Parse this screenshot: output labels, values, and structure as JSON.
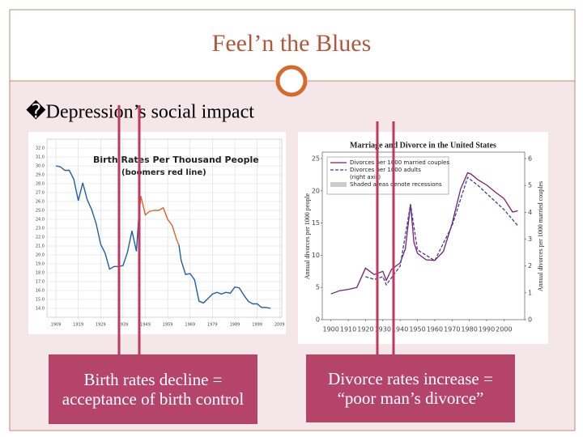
{
  "slide": {
    "title": "Feel’n the Blues",
    "bullet": "�Depression’s social impact",
    "captions": [
      "Birth rates decline = acceptance of birth control",
      "Divorce rates increase = “poor man’s divorce”"
    ]
  },
  "chart_data": [
    {
      "type": "line",
      "title": "Birth Rates Per Thousand People",
      "subtitle": "(boomers red line)",
      "grid": true,
      "xlim": [
        1905,
        2010
      ],
      "xticks": [
        1909,
        1919,
        1929,
        1939,
        1949,
        1959,
        1969,
        1979,
        1989,
        1999,
        2009
      ],
      "ylim": [
        13,
        33
      ],
      "yticks": [
        {
          "value": 14,
          "label": "14.0"
        },
        {
          "value": 15,
          "label": "15.0"
        },
        {
          "value": 16,
          "label": "16.0"
        },
        {
          "value": 17,
          "label": "17.0"
        },
        {
          "value": 18,
          "label": "18.0"
        },
        {
          "value": 19,
          "label": "19.0"
        },
        {
          "value": 20,
          "label": "20.0"
        },
        {
          "value": 21,
          "label": "21.0"
        },
        {
          "value": 22,
          "label": "22.0"
        },
        {
          "value": 23,
          "label": "23.0"
        },
        {
          "value": 24,
          "label": "24.0"
        },
        {
          "value": 25,
          "label": "25.0"
        },
        {
          "value": 26,
          "label": "26.0"
        },
        {
          "value": 27,
          "label": "27.0"
        },
        {
          "value": 28,
          "label": "28.0"
        },
        {
          "value": 29,
          "label": "29.0"
        },
        {
          "value": 30,
          "label": "30.0"
        },
        {
          "value": 31,
          "label": "31.0"
        },
        {
          "value": 32,
          "label": "32.0"
        }
      ],
      "series": [
        {
          "color": "#1f5fa8",
          "x": [
            1909,
            1911,
            1913,
            1915,
            1917,
            1919,
            1921,
            1923,
            1925,
            1927,
            1929,
            1931,
            1933,
            1935,
            1937,
            1939,
            1941,
            1943,
            1945,
            1946
          ],
          "values": [
            30.0,
            29.9,
            29.5,
            29.5,
            28.5,
            26.1,
            28.1,
            26.2,
            25.1,
            23.5,
            21.2,
            20.2,
            18.4,
            18.7,
            18.7,
            18.8,
            20.3,
            22.7,
            20.4,
            24.1
          ]
        },
        {
          "color": "#e0622a",
          "x": [
            1946,
            1947,
            1949,
            1951,
            1953,
            1955,
            1957,
            1959,
            1961,
            1963,
            1964
          ],
          "values": [
            24.1,
            26.6,
            24.5,
            24.9,
            25.0,
            25.0,
            25.3,
            24.0,
            23.3,
            21.7,
            21.1
          ]
        },
        {
          "color": "#1f5fa8",
          "x": [
            1964,
            1965,
            1967,
            1969,
            1971,
            1973,
            1975,
            1977,
            1979,
            1981,
            1983,
            1985,
            1987,
            1989,
            1991,
            1993,
            1995,
            1997,
            1999,
            2001,
            2003,
            2005
          ],
          "values": [
            21.1,
            19.4,
            17.8,
            17.9,
            17.2,
            14.8,
            14.6,
            15.1,
            15.6,
            15.8,
            15.6,
            15.8,
            15.7,
            16.4,
            16.3,
            15.5,
            14.8,
            14.5,
            14.5,
            14.1,
            14.1,
            14.0
          ]
        }
      ]
    },
    {
      "type": "line",
      "title": "Marriage and Divorce in the United States",
      "ylabel": "Annual divorces per 1000 people",
      "y2label": "Annual divorces per 1000 married couples",
      "xlim": [
        1895,
        2012
      ],
      "xticks": [
        1900,
        1910,
        1920,
        1930,
        1940,
        1950,
        1960,
        1970,
        1980,
        1990,
        2000
      ],
      "ylim": [
        0,
        26
      ],
      "yticks": [
        0,
        5,
        10,
        15,
        20,
        25
      ],
      "y2lim": [
        0,
        6.24
      ],
      "y2ticks": [
        0,
        1,
        2,
        3,
        4,
        5,
        6
      ],
      "legend_note": "Shaded areas denote recessions",
      "series": [
        {
          "name": "Divorces per 1000 married couples",
          "color": "#7b1f6e",
          "x": [
            1900,
            1905,
            1910,
            1915,
            1920,
            1925,
            1930,
            1932,
            1935,
            1940,
            1943,
            1946,
            1948,
            1950,
            1955,
            1960,
            1965,
            1970,
            1975,
            1979,
            1981,
            1985,
            1990,
            1995,
            2000,
            2005,
            2008
          ],
          "values": [
            4.0,
            4.5,
            4.7,
            5.0,
            8.0,
            7.0,
            7.5,
            6.1,
            7.8,
            8.8,
            11.0,
            17.9,
            12.0,
            10.3,
            9.3,
            9.2,
            10.6,
            14.9,
            20.3,
            22.8,
            22.6,
            21.7,
            20.9,
            19.8,
            18.8,
            16.7,
            16.9
          ]
        },
        {
          "name": "Divorces per 1000 adults",
          "axis_note": "(right axis)",
          "color": "#3b3fa0",
          "dash": true,
          "axis": "y2",
          "x": [
            1920,
            1925,
            1930,
            1932,
            1940,
            1946,
            1950,
            1960,
            1970,
            1979,
            1985,
            1990,
            2000,
            2008
          ],
          "values": [
            1.6,
            1.5,
            1.6,
            1.3,
            2.0,
            4.3,
            2.6,
            2.2,
            3.5,
            5.3,
            5.0,
            4.7,
            4.1,
            3.5
          ]
        }
      ]
    }
  ]
}
